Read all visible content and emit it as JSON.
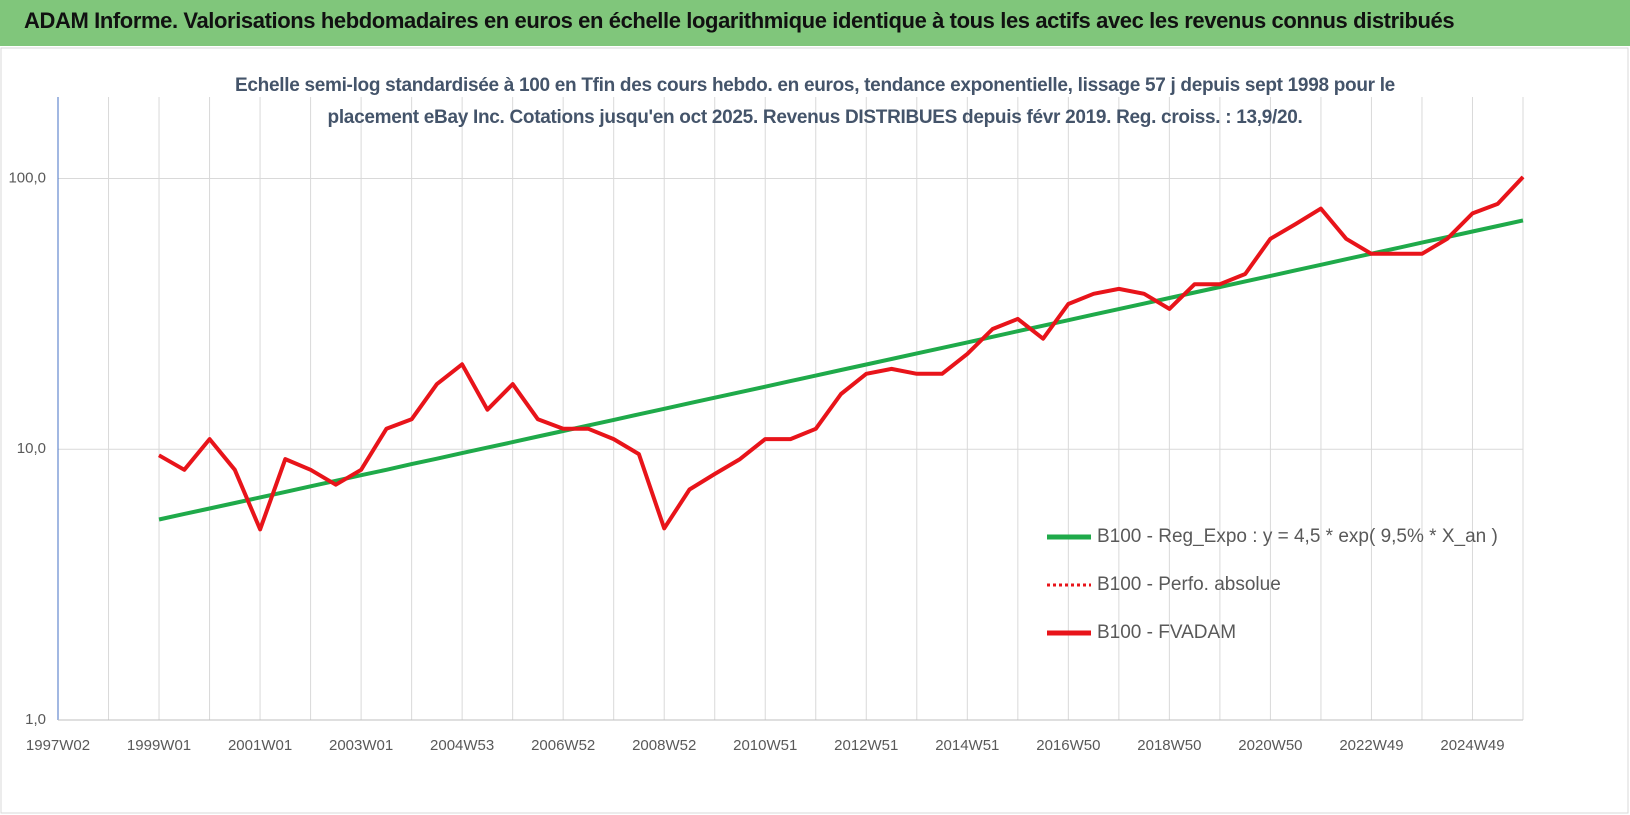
{
  "chart_data": {
    "type": "line",
    "title": "ADAM Informe. Valorisations hebdomadaires en euros en échelle logarithmique identique à tous les actifs avec les revenus connus distribués",
    "subtitle": "Echelle semi-log standardisée à 100 en Tfin des cours hebdo. en euros, tendance exponentielle, lissage 57 j depuis sept 1998 pour le placement eBay Inc. Cotations jusqu'en oct 2025. Revenus DISTRIBUES depuis févr 2019. Reg. croiss. : 13,9/20.",
    "log_scale": true,
    "grid": true,
    "legend": "lower right",
    "ylim": [
      1,
      200
    ],
    "yticks": [
      {
        "value": 1,
        "label": "1,0"
      },
      {
        "value": 10,
        "label": "10,0"
      },
      {
        "value": 100,
        "label": "100,0"
      }
    ],
    "categories": [
      "1997W02",
      null,
      null,
      null,
      "1999W01",
      null,
      null,
      null,
      "2001W01",
      null,
      null,
      null,
      "2003W01",
      null,
      null,
      null,
      "2004W53",
      null,
      null,
      null,
      "2006W52",
      null,
      null,
      null,
      "2008W52",
      null,
      null,
      null,
      "2010W51",
      null,
      null,
      null,
      "2012W51",
      null,
      null,
      null,
      "2014W51",
      null,
      null,
      null,
      "2016W50",
      null,
      null,
      null,
      "2018W50",
      null,
      null,
      null,
      "2020W50",
      null,
      null,
      null,
      "2022W49",
      null,
      null,
      null,
      "2024W49",
      null,
      null
    ],
    "series": [
      {
        "name": "B100 - Reg_Expo : y = 4,5 * exp( 9,5% *  X_an )",
        "color": "#1faa4a",
        "style": "solid",
        "values": [
          null,
          null,
          null,
          null,
          5.5,
          5.77,
          6.04,
          6.33,
          6.64,
          6.96,
          7.3,
          7.65,
          8.02,
          8.4,
          8.81,
          9.23,
          9.68,
          10.14,
          10.63,
          11.15,
          11.68,
          12.25,
          12.84,
          13.46,
          14.11,
          14.79,
          15.5,
          16.25,
          17.03,
          17.85,
          18.71,
          19.62,
          20.56,
          21.55,
          22.59,
          23.68,
          24.82,
          26.02,
          27.28,
          28.59,
          29.97,
          31.42,
          32.94,
          34.52,
          36.19,
          37.93,
          39.76,
          41.68,
          43.69,
          45.8,
          48.01,
          50.33,
          52.76,
          55.3,
          57.97,
          60.77,
          63.7,
          66.77,
          70.0
        ]
      },
      {
        "name": "B100 - Perfo. absolue",
        "color": "#e8141a",
        "style": "dotted",
        "values": [
          null,
          null,
          null,
          null,
          9.5,
          8.4,
          10.9,
          8.4,
          5.06,
          9.2,
          8.4,
          7.4,
          8.4,
          11.9,
          12.9,
          17.4,
          20.6,
          14.0,
          17.4,
          12.9,
          11.9,
          11.9,
          10.9,
          9.6,
          5.1,
          7.1,
          8.1,
          9.2,
          10.9,
          10.9,
          11.9,
          16.0,
          19.0,
          19.8,
          19.0,
          19.0,
          22.5,
          27.8,
          30.3,
          25.6,
          34.4,
          37.5,
          39.1,
          37.5,
          33.0,
          40.7,
          40.7,
          44.4,
          59.9,
          67.9,
          77.4,
          59.9,
          52.7,
          52.7,
          52.7,
          59.9,
          74.3,
          80.6,
          101.3
        ]
      },
      {
        "name": "B100 - FVADAM",
        "color": "#e8141a",
        "style": "solid",
        "values": [
          null,
          null,
          null,
          null,
          9.5,
          8.4,
          10.9,
          8.4,
          5.06,
          9.2,
          8.4,
          7.4,
          8.4,
          11.9,
          12.9,
          17.4,
          20.6,
          14.0,
          17.4,
          12.9,
          11.9,
          11.9,
          10.9,
          9.6,
          5.1,
          7.1,
          8.1,
          9.2,
          10.9,
          10.9,
          11.9,
          16.0,
          19.0,
          19.8,
          19.0,
          19.0,
          22.5,
          27.8,
          30.3,
          25.6,
          34.4,
          37.5,
          39.1,
          37.5,
          33.0,
          40.7,
          40.7,
          44.4,
          59.9,
          67.9,
          77.4,
          59.9,
          52.7,
          52.7,
          52.7,
          59.9,
          74.3,
          80.6,
          101.3
        ]
      }
    ]
  }
}
